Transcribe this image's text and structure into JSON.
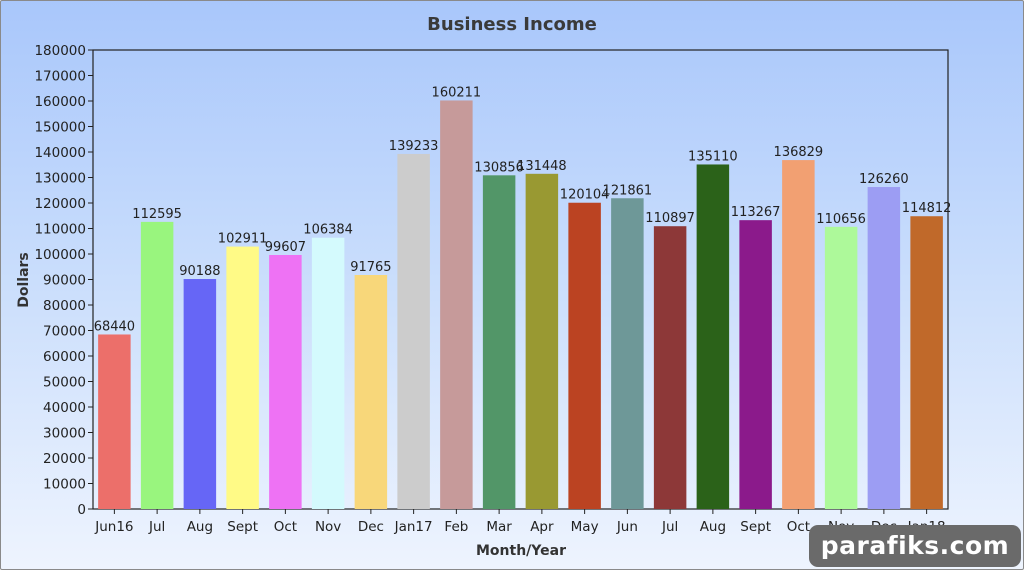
{
  "chart_data": {
    "type": "bar",
    "title": "Business Income",
    "xlabel": "Month/Year",
    "ylabel": "Dollars",
    "ylim": [
      0,
      180000
    ],
    "ytick_step": 10000,
    "grid": false,
    "categories": [
      "Jun16",
      "Jul",
      "Aug",
      "Sept",
      "Oct",
      "Nov",
      "Dec",
      "Jan17",
      "Feb",
      "Mar",
      "Apr",
      "May",
      "Jun",
      "Jul",
      "Aug",
      "Sept",
      "Oct",
      "Nov",
      "Dec",
      "Jan18"
    ],
    "values": [
      68440,
      112595,
      90188,
      102911,
      99607,
      106384,
      91765,
      139233,
      160211,
      130856,
      131448,
      120104,
      121861,
      110897,
      135110,
      113267,
      136829,
      110656,
      126260,
      114812
    ],
    "colors": [
      "#ec6f6a",
      "#99f57e",
      "#6666f6",
      "#fffa86",
      "#ee72f4",
      "#d4fafd",
      "#f8d77a",
      "#cccccc",
      "#c69a9a",
      "#529668",
      "#999932",
      "#bb4322",
      "#6e9898",
      "#8d3838",
      "#2b6219",
      "#8b1a8b",
      "#f2a072",
      "#adf99a",
      "#9c9df3",
      "#c0692a"
    ]
  },
  "watermark": "parafiks.com"
}
